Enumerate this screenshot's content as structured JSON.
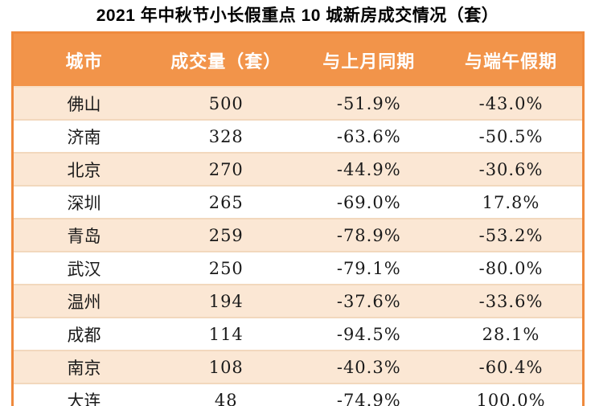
{
  "title": "2021 年中秋节小长假重点 10 城新房成交情况（套）",
  "colors": {
    "header_orange": "#F2944A",
    "outer_border_orange": "#EF8A3D",
    "row_peach": "#FBE7D4",
    "row_white": "#FFFFFF",
    "row_divider": "#F2D8BD",
    "header_text": "#FFFFFF",
    "body_text": "#1A1A1A"
  },
  "chart_data": {
    "type": "table",
    "title": "2021 年中秋节小长假重点 10 城新房成交情况（套）",
    "columns": [
      "城市",
      "成交量（套）",
      "与上月同期",
      "与端午假期"
    ],
    "row_field_order": [
      "city",
      "volume",
      "vs_last_month",
      "vs_duanwu_holiday"
    ],
    "rows": [
      {
        "city": "佛山",
        "volume": "500",
        "vs_last_month": "-51.9%",
        "vs_duanwu_holiday": "-43.0%"
      },
      {
        "city": "济南",
        "volume": "328",
        "vs_last_month": "-63.6%",
        "vs_duanwu_holiday": "-50.5%"
      },
      {
        "city": "北京",
        "volume": "270",
        "vs_last_month": "-44.9%",
        "vs_duanwu_holiday": "-30.6%"
      },
      {
        "city": "深圳",
        "volume": "265",
        "vs_last_month": "-69.0%",
        "vs_duanwu_holiday": "17.8%"
      },
      {
        "city": "青岛",
        "volume": "259",
        "vs_last_month": "-78.9%",
        "vs_duanwu_holiday": "-53.2%"
      },
      {
        "city": "武汉",
        "volume": "250",
        "vs_last_month": "-79.1%",
        "vs_duanwu_holiday": "-80.0%"
      },
      {
        "city": "温州",
        "volume": "194",
        "vs_last_month": "-37.6%",
        "vs_duanwu_holiday": "-33.6%"
      },
      {
        "city": "成都",
        "volume": "114",
        "vs_last_month": "-94.5%",
        "vs_duanwu_holiday": "28.1%"
      },
      {
        "city": "南京",
        "volume": "108",
        "vs_last_month": "-40.3%",
        "vs_duanwu_holiday": "-60.4%"
      },
      {
        "city": "大连",
        "volume": "48",
        "vs_last_month": "-74.9%",
        "vs_duanwu_holiday": "100.0%"
      }
    ]
  }
}
